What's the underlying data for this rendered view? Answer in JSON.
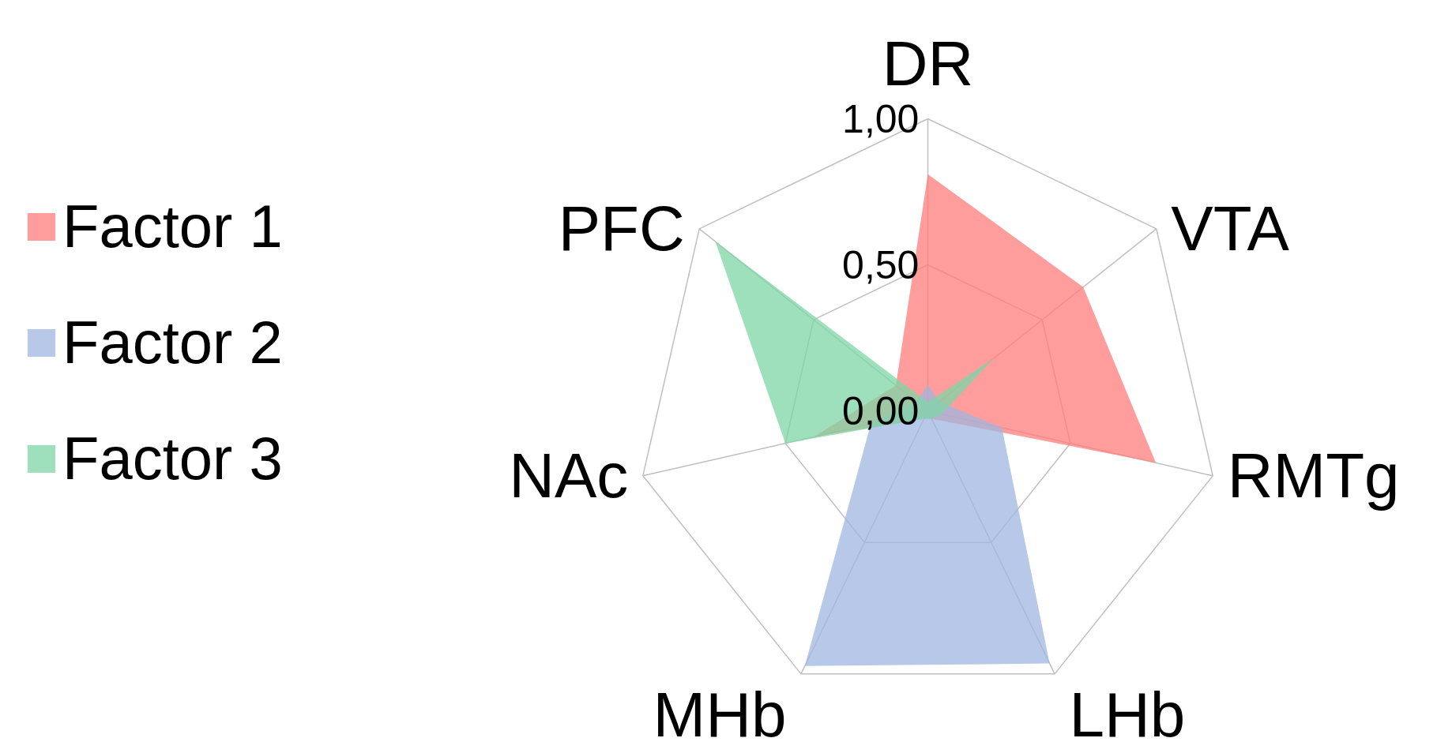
{
  "chart_data": {
    "type": "radar",
    "categories": [
      "DR",
      "VTA",
      "RMTg",
      "LHb",
      "MHb",
      "NAc",
      "PFC"
    ],
    "series": [
      {
        "name": "Factor 1",
        "color": "#ff7c7c",
        "values": [
          0.81,
          0.68,
          0.8,
          0.03,
          0.03,
          0.4,
          0.14
        ]
      },
      {
        "name": "Factor 2",
        "color": "#a0b6e0",
        "values": [
          0.09,
          0.05,
          0.26,
          0.96,
          0.97,
          0.2,
          0.05
        ]
      },
      {
        "name": "Factor 3",
        "color": "#7dd5a5",
        "values": [
          0.03,
          0.29,
          0.05,
          0.03,
          0.03,
          0.5,
          0.93
        ]
      }
    ],
    "ylim": [
      0,
      1
    ],
    "yticks": [
      {
        "value": 0,
        "label": "0,00"
      },
      {
        "value": 0.5,
        "label": "0,50"
      },
      {
        "value": 1,
        "label": "1,00"
      }
    ],
    "grid": true,
    "legend": "left"
  }
}
